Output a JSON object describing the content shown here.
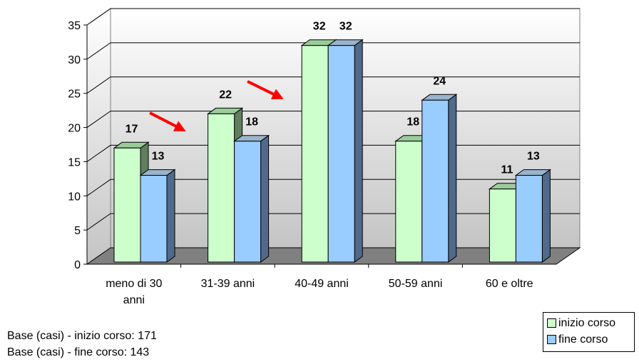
{
  "chart_data": {
    "type": "bar",
    "categories": [
      [
        "meno di 30",
        "anni"
      ],
      [
        "31-39 anni"
      ],
      [
        "40-49 anni"
      ],
      [
        "50-59 anni"
      ],
      [
        "60 e oltre"
      ]
    ],
    "series": [
      {
        "name": "inizio corso",
        "values": [
          17,
          22,
          32,
          18,
          11
        ],
        "color": "#ccffcc"
      },
      {
        "name": "fine corso",
        "values": [
          13,
          18,
          32,
          24,
          13
        ],
        "color": "#99ccff"
      }
    ],
    "ylim": [
      0,
      35
    ],
    "yticks": [
      0,
      5,
      10,
      15,
      20,
      25,
      30,
      35
    ],
    "grid": true,
    "legend": "bottom-right",
    "arrow_color": "#ff0000"
  },
  "notes": [
    "Base (casi) - inizio corso: 171",
    "Base (casi) - fine corso: 143"
  ],
  "legend_labels": [
    "inizio corso",
    "fine corso"
  ]
}
